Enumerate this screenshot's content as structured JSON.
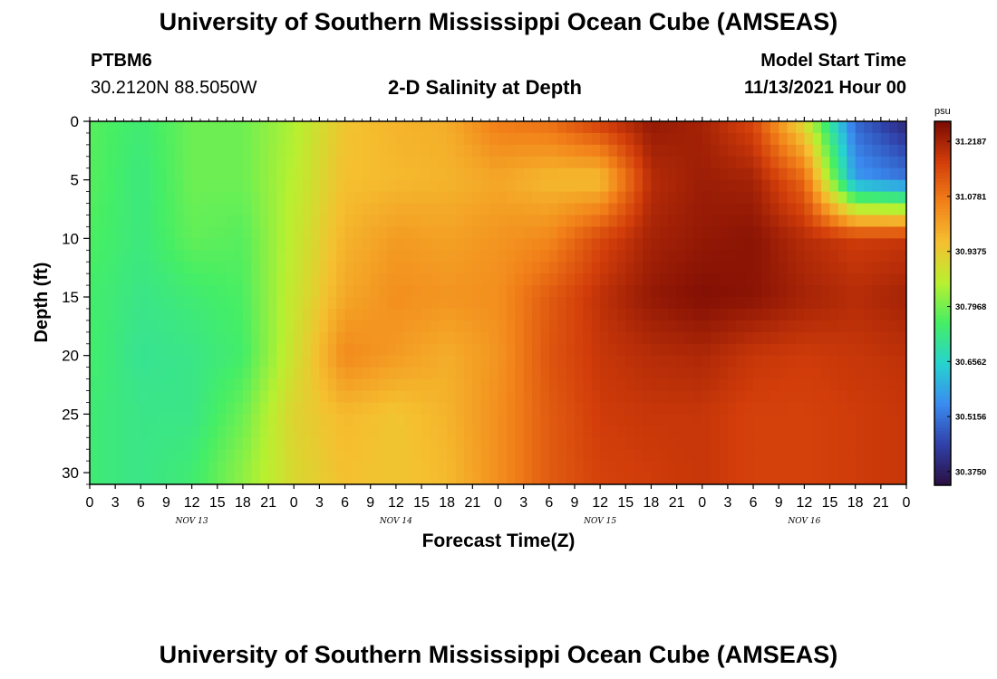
{
  "header": {
    "title": "University of Southern Mississippi Ocean Cube (AMSEAS)",
    "station": "PTBM6",
    "coords": "30.2120N  88.5050W",
    "plot_title": "2-D Salinity at Depth",
    "model_label": "Model Start Time",
    "model_date": "11/13/2021 Hour 00"
  },
  "footer": {
    "title": "University of Southern Mississippi Ocean Cube (AMSEAS)"
  },
  "chart_data": {
    "type": "heatmap",
    "title": "2-D Salinity at Depth",
    "xlabel": "Forecast Time(Z)",
    "ylabel": "Depth (ft)",
    "x_ticks": [
      "0",
      "3",
      "6",
      "9",
      "12",
      "15",
      "18",
      "21",
      "0",
      "3",
      "6",
      "9",
      "12",
      "15",
      "18",
      "21",
      "0",
      "3",
      "6",
      "9",
      "12",
      "15",
      "18",
      "21",
      "0",
      "3",
      "6",
      "9",
      "12",
      "15",
      "18",
      "21",
      "0"
    ],
    "x_day_labels": [
      "NOV 13",
      "NOV 14",
      "NOV 15",
      "NOV 16"
    ],
    "y_ticks": [
      0,
      5,
      10,
      15,
      20,
      25,
      30
    ],
    "ylim": [
      31,
      0
    ],
    "colorbar": {
      "unit": "psu",
      "ticks": [
        "31.2187",
        "31.0781",
        "30.9375",
        "30.7968",
        "30.6562",
        "30.5156",
        "30.3750"
      ],
      "range": [
        30.34,
        31.27
      ],
      "colors": [
        "#2a0f40",
        "#3040a8",
        "#3a8bf0",
        "#26d3cf",
        "#44ee66",
        "#b8f030",
        "#f5c030",
        "#f28019",
        "#d23d0a",
        "#7a0a03"
      ]
    },
    "x_hours": [
      0,
      6,
      12,
      18,
      24,
      30,
      36,
      42,
      48,
      54,
      60,
      66,
      72,
      78,
      84,
      90,
      96
    ],
    "depths_ft": [
      0,
      5,
      10,
      15,
      20,
      25,
      30
    ],
    "values": [
      [
        30.77,
        30.74,
        30.79,
        30.79,
        30.85,
        30.95,
        30.98,
        30.99,
        31.07,
        31.09,
        31.17,
        31.24,
        31.22,
        31.15,
        30.9,
        30.5,
        30.39
      ],
      [
        30.77,
        30.73,
        30.79,
        30.79,
        30.86,
        30.96,
        30.97,
        30.98,
        31.0,
        30.97,
        30.96,
        31.2,
        31.23,
        31.22,
        31.1,
        30.57,
        30.52
      ],
      [
        30.76,
        30.73,
        30.78,
        30.77,
        30.87,
        30.98,
        31.02,
        31.01,
        31.03,
        31.05,
        31.15,
        31.22,
        31.24,
        31.25,
        31.2,
        31.17,
        31.18
      ],
      [
        30.75,
        30.72,
        30.74,
        30.76,
        30.88,
        31.0,
        31.04,
        31.03,
        31.04,
        31.12,
        31.19,
        31.24,
        31.26,
        31.25,
        31.22,
        31.2,
        31.22
      ],
      [
        30.75,
        30.71,
        30.72,
        30.75,
        30.89,
        31.05,
        31.02,
        30.99,
        31.03,
        31.13,
        31.18,
        31.2,
        31.21,
        31.18,
        31.17,
        31.18,
        31.19
      ],
      [
        30.74,
        30.72,
        30.72,
        30.79,
        30.92,
        30.97,
        30.95,
        30.98,
        31.04,
        31.12,
        31.17,
        31.18,
        31.18,
        31.16,
        31.16,
        31.17,
        31.18
      ],
      [
        30.74,
        30.72,
        30.74,
        30.82,
        30.91,
        30.96,
        30.95,
        30.97,
        31.04,
        31.12,
        31.16,
        31.17,
        31.18,
        31.16,
        31.16,
        31.17,
        31.18
      ]
    ]
  }
}
